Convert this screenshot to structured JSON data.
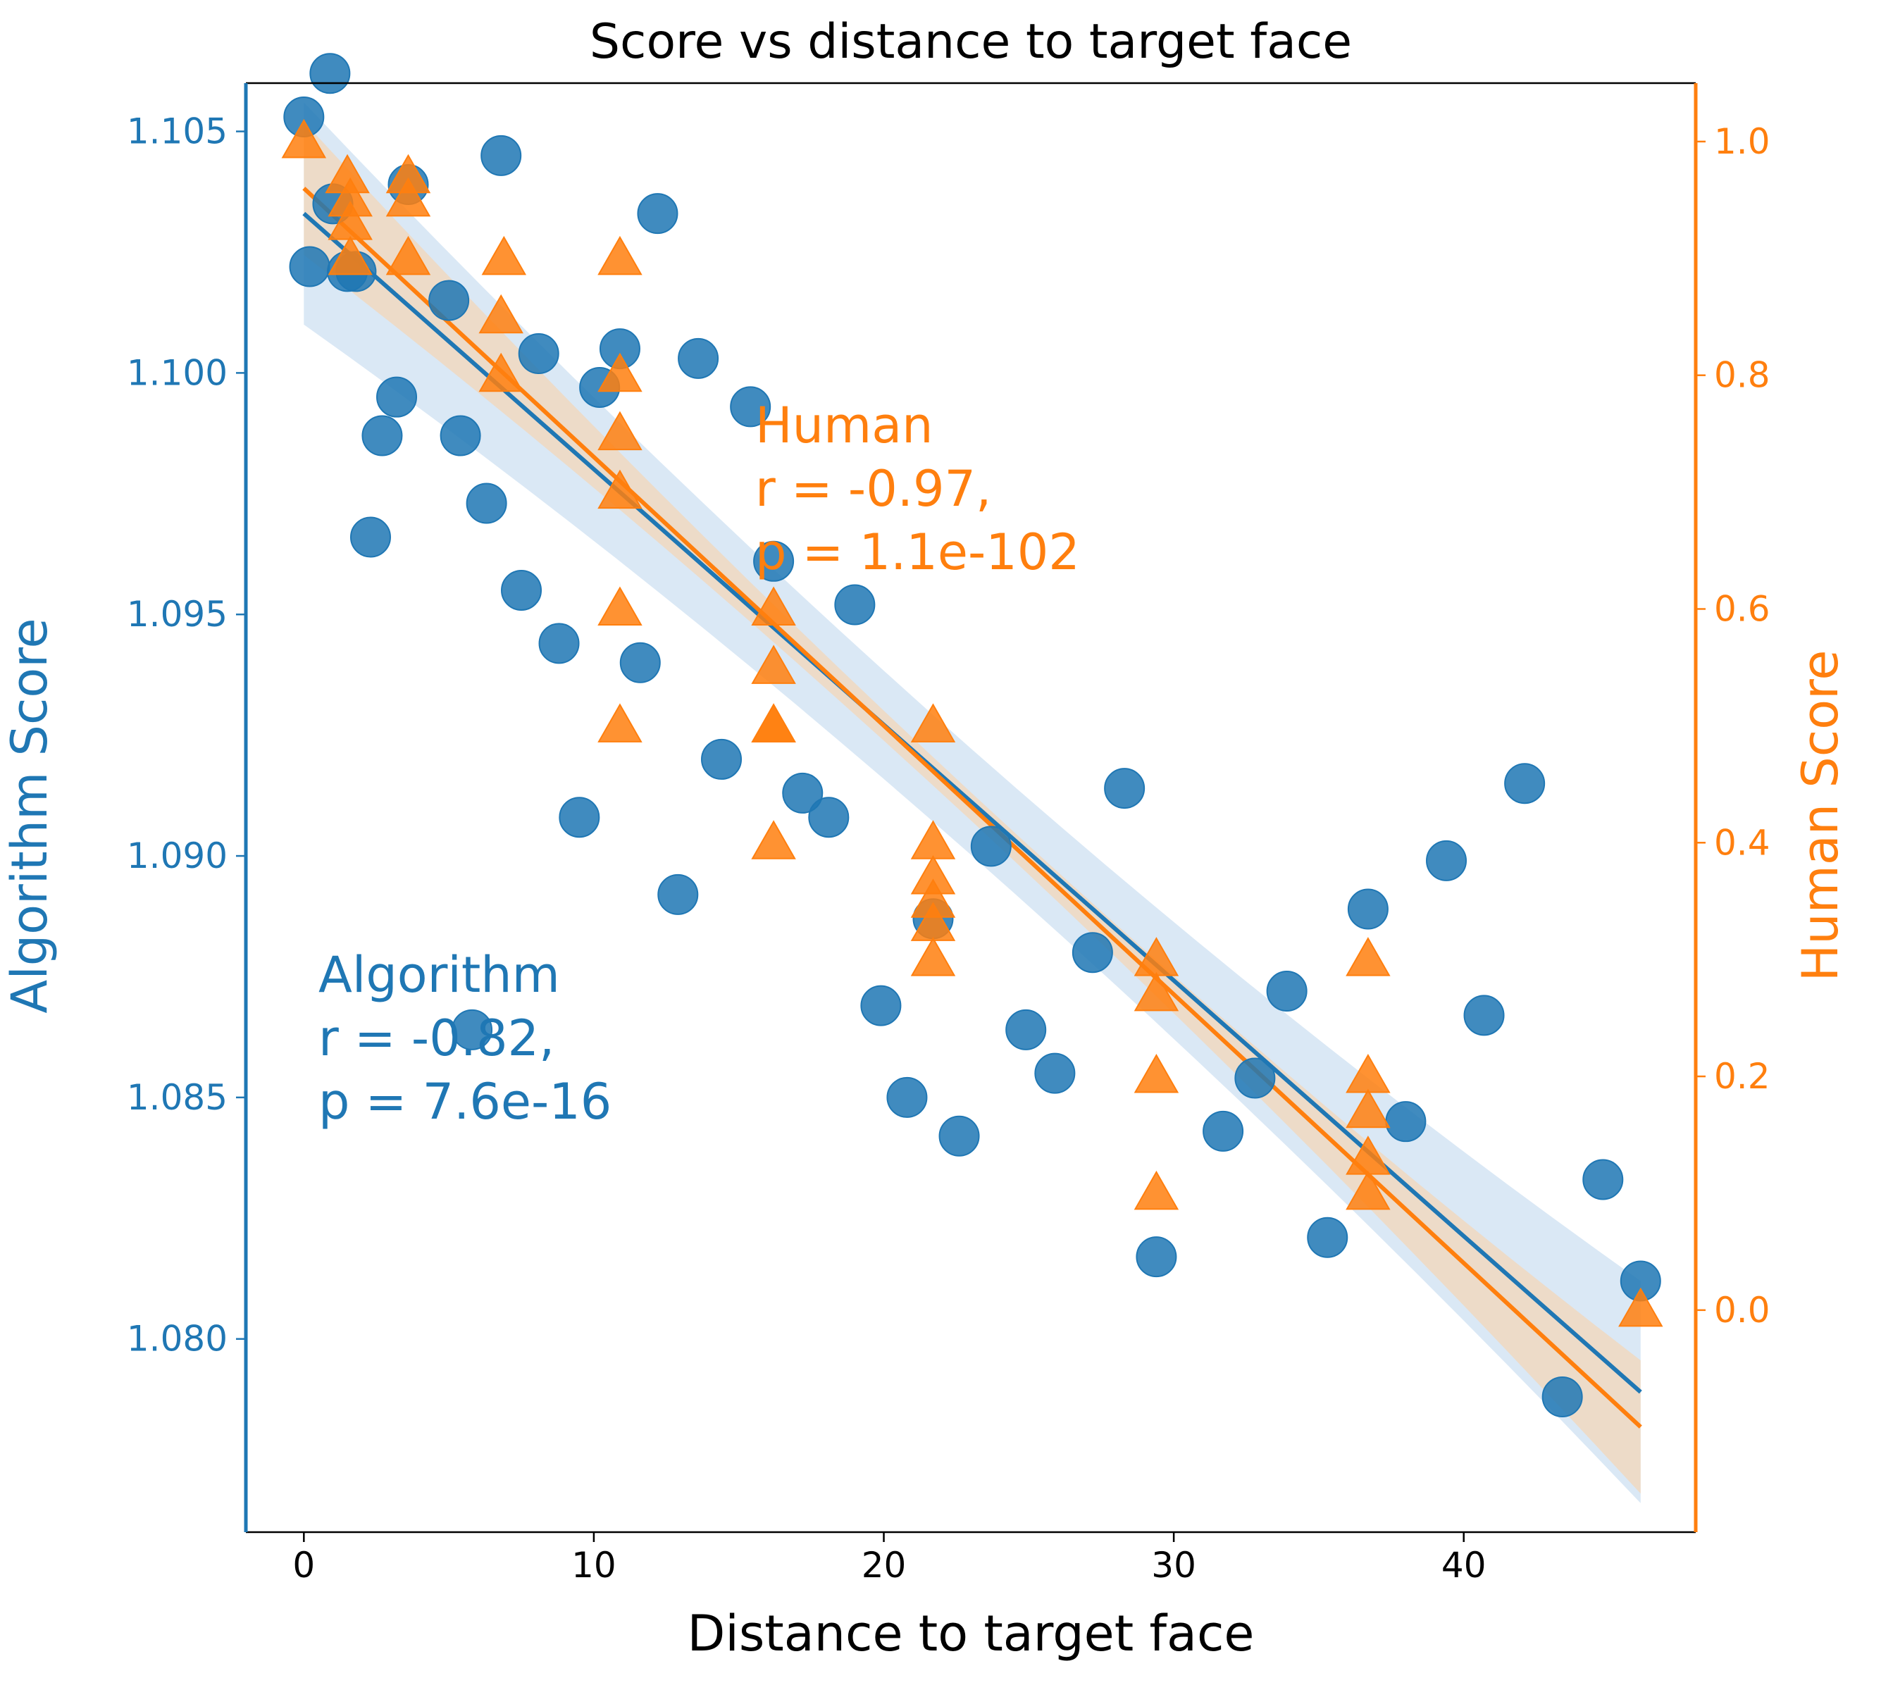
{
  "chart_data": {
    "type": "scatter",
    "title": "Score vs distance to target face",
    "xlabel": "Distance to target face",
    "ylabel_left": "Algorithm Score",
    "ylabel_right": "Human Score",
    "xlim": [
      -2,
      48
    ],
    "ylim_left": [
      1.076,
      1.106
    ],
    "ylim_right": [
      -0.19,
      1.05
    ],
    "x_ticks": [
      0,
      10,
      20,
      30,
      40
    ],
    "y_ticks_left": [
      1.08,
      1.085,
      1.09,
      1.095,
      1.1,
      1.105
    ],
    "y_ticks_right": [
      0.0,
      0.2,
      0.4,
      0.6,
      0.8,
      1.0
    ],
    "grid": false,
    "colors": {
      "algorithm": "#1f77b4",
      "human": "#ff7f0e",
      "algorithm_band": "#c6dbef",
      "human_band": "#fdd0a2"
    },
    "series": [
      {
        "name": "Algorithm",
        "axis": "left",
        "marker": "circle",
        "points": [
          [
            0.0,
            1.1053
          ],
          [
            0.2,
            1.1022
          ],
          [
            0.9,
            1.1062
          ],
          [
            1.0,
            1.1035
          ],
          [
            1.5,
            1.1021
          ],
          [
            1.8,
            1.1021
          ],
          [
            2.3,
            1.0966
          ],
          [
            2.7,
            1.0987
          ],
          [
            3.2,
            1.0995
          ],
          [
            3.6,
            1.1039
          ],
          [
            5.0,
            1.1015
          ],
          [
            5.4,
            1.0987
          ],
          [
            5.8,
            1.0864
          ],
          [
            6.3,
            1.0973
          ],
          [
            6.8,
            1.1045
          ],
          [
            7.5,
            1.0955
          ],
          [
            8.1,
            1.1004
          ],
          [
            8.8,
            1.0944
          ],
          [
            9.5,
            1.0908
          ],
          [
            10.2,
            1.0997
          ],
          [
            10.9,
            1.1005
          ],
          [
            11.6,
            1.094
          ],
          [
            12.2,
            1.1033
          ],
          [
            12.9,
            1.0892
          ],
          [
            13.6,
            1.1003
          ],
          [
            14.4,
            1.092
          ],
          [
            15.4,
            1.0993
          ],
          [
            16.2,
            1.0961
          ],
          [
            17.2,
            1.0913
          ],
          [
            18.1,
            1.0908
          ],
          [
            19.0,
            1.0952
          ],
          [
            19.9,
            1.0869
          ],
          [
            20.8,
            1.085
          ],
          [
            21.7,
            1.0887
          ],
          [
            22.6,
            1.0842
          ],
          [
            23.7,
            1.0902
          ],
          [
            24.9,
            1.0864
          ],
          [
            25.9,
            1.0855
          ],
          [
            27.2,
            1.088
          ],
          [
            28.3,
            1.0914
          ],
          [
            29.4,
            1.0817
          ],
          [
            31.7,
            1.0843
          ],
          [
            32.8,
            1.0854
          ],
          [
            33.9,
            1.0872
          ],
          [
            35.3,
            1.0821
          ],
          [
            36.7,
            1.0889
          ],
          [
            38.0,
            1.0845
          ],
          [
            39.4,
            1.0899
          ],
          [
            40.7,
            1.0867
          ],
          [
            42.1,
            1.0915
          ],
          [
            43.4,
            1.0788
          ],
          [
            44.8,
            1.0833
          ],
          [
            46.1,
            1.0812
          ]
        ],
        "fit": {
          "x": [
            0.0,
            46.1
          ],
          "y": [
            1.1033,
            1.0789
          ]
        }
      },
      {
        "name": "Human",
        "axis": "right",
        "marker": "triangle",
        "points": [
          [
            0.0,
            1.0
          ],
          [
            1.5,
            0.97
          ],
          [
            1.6,
            0.95
          ],
          [
            1.6,
            0.93
          ],
          [
            1.6,
            0.9
          ],
          [
            3.6,
            0.97
          ],
          [
            3.6,
            0.95
          ],
          [
            3.6,
            0.9
          ],
          [
            6.9,
            0.9
          ],
          [
            6.8,
            0.85
          ],
          [
            6.8,
            0.8
          ],
          [
            10.9,
            0.9
          ],
          [
            10.9,
            0.8
          ],
          [
            10.9,
            0.75
          ],
          [
            10.9,
            0.7
          ],
          [
            10.9,
            0.6
          ],
          [
            10.9,
            0.5
          ],
          [
            16.2,
            0.6
          ],
          [
            16.2,
            0.55
          ],
          [
            16.2,
            0.5
          ],
          [
            16.2,
            0.5
          ],
          [
            16.2,
            0.4
          ],
          [
            21.7,
            0.5
          ],
          [
            21.7,
            0.4
          ],
          [
            21.7,
            0.37
          ],
          [
            21.7,
            0.35
          ],
          [
            21.7,
            0.33
          ],
          [
            21.7,
            0.3
          ],
          [
            29.4,
            0.3
          ],
          [
            29.4,
            0.27
          ],
          [
            29.4,
            0.2
          ],
          [
            29.4,
            0.1
          ],
          [
            36.7,
            0.3
          ],
          [
            36.7,
            0.2
          ],
          [
            36.7,
            0.17
          ],
          [
            36.7,
            0.13
          ],
          [
            36.7,
            0.1
          ],
          [
            46.1,
            0.0
          ]
        ],
        "fit": {
          "x": [
            0.0,
            46.1
          ],
          "y": [
            0.96,
            -0.1
          ]
        }
      }
    ],
    "annotations": [
      {
        "series": "Algorithm",
        "lines": [
          "Algorithm",
          "r = -0.82,",
          "p = 7.6e-16"
        ]
      },
      {
        "series": "Human",
        "lines": [
          "Human",
          "r = -0.97,",
          "p = 1.1e-102"
        ]
      }
    ]
  }
}
